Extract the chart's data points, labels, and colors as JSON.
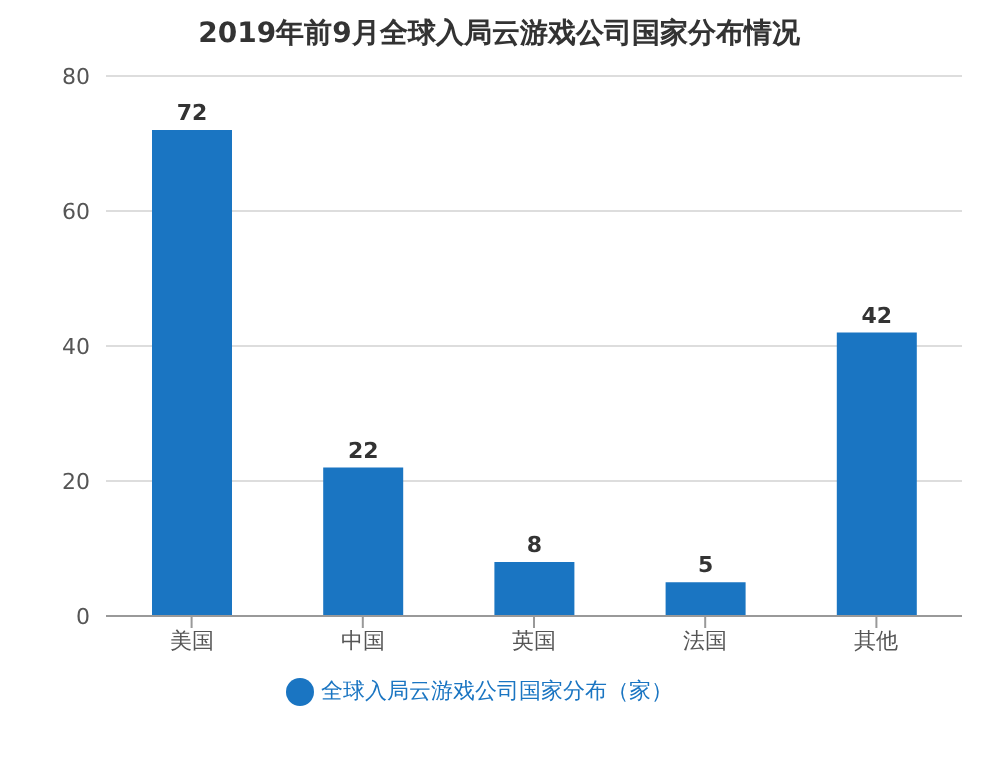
{
  "chart_data": {
    "type": "bar",
    "title": "2019年前9月全球入局云游戏公司国家分布情况",
    "categories": [
      "美国",
      "中国",
      "英国",
      "法国",
      "其他"
    ],
    "series": [
      {
        "name": "全球入局云游戏公司国家分布（家）",
        "color": "#1a75c2",
        "values": [
          72,
          22,
          8,
          5,
          42
        ]
      }
    ],
    "ylim": [
      0,
      80
    ],
    "yticks": [
      0,
      20,
      40,
      60,
      80
    ],
    "grid": "y",
    "legend": "bottom",
    "data_labels": true
  }
}
